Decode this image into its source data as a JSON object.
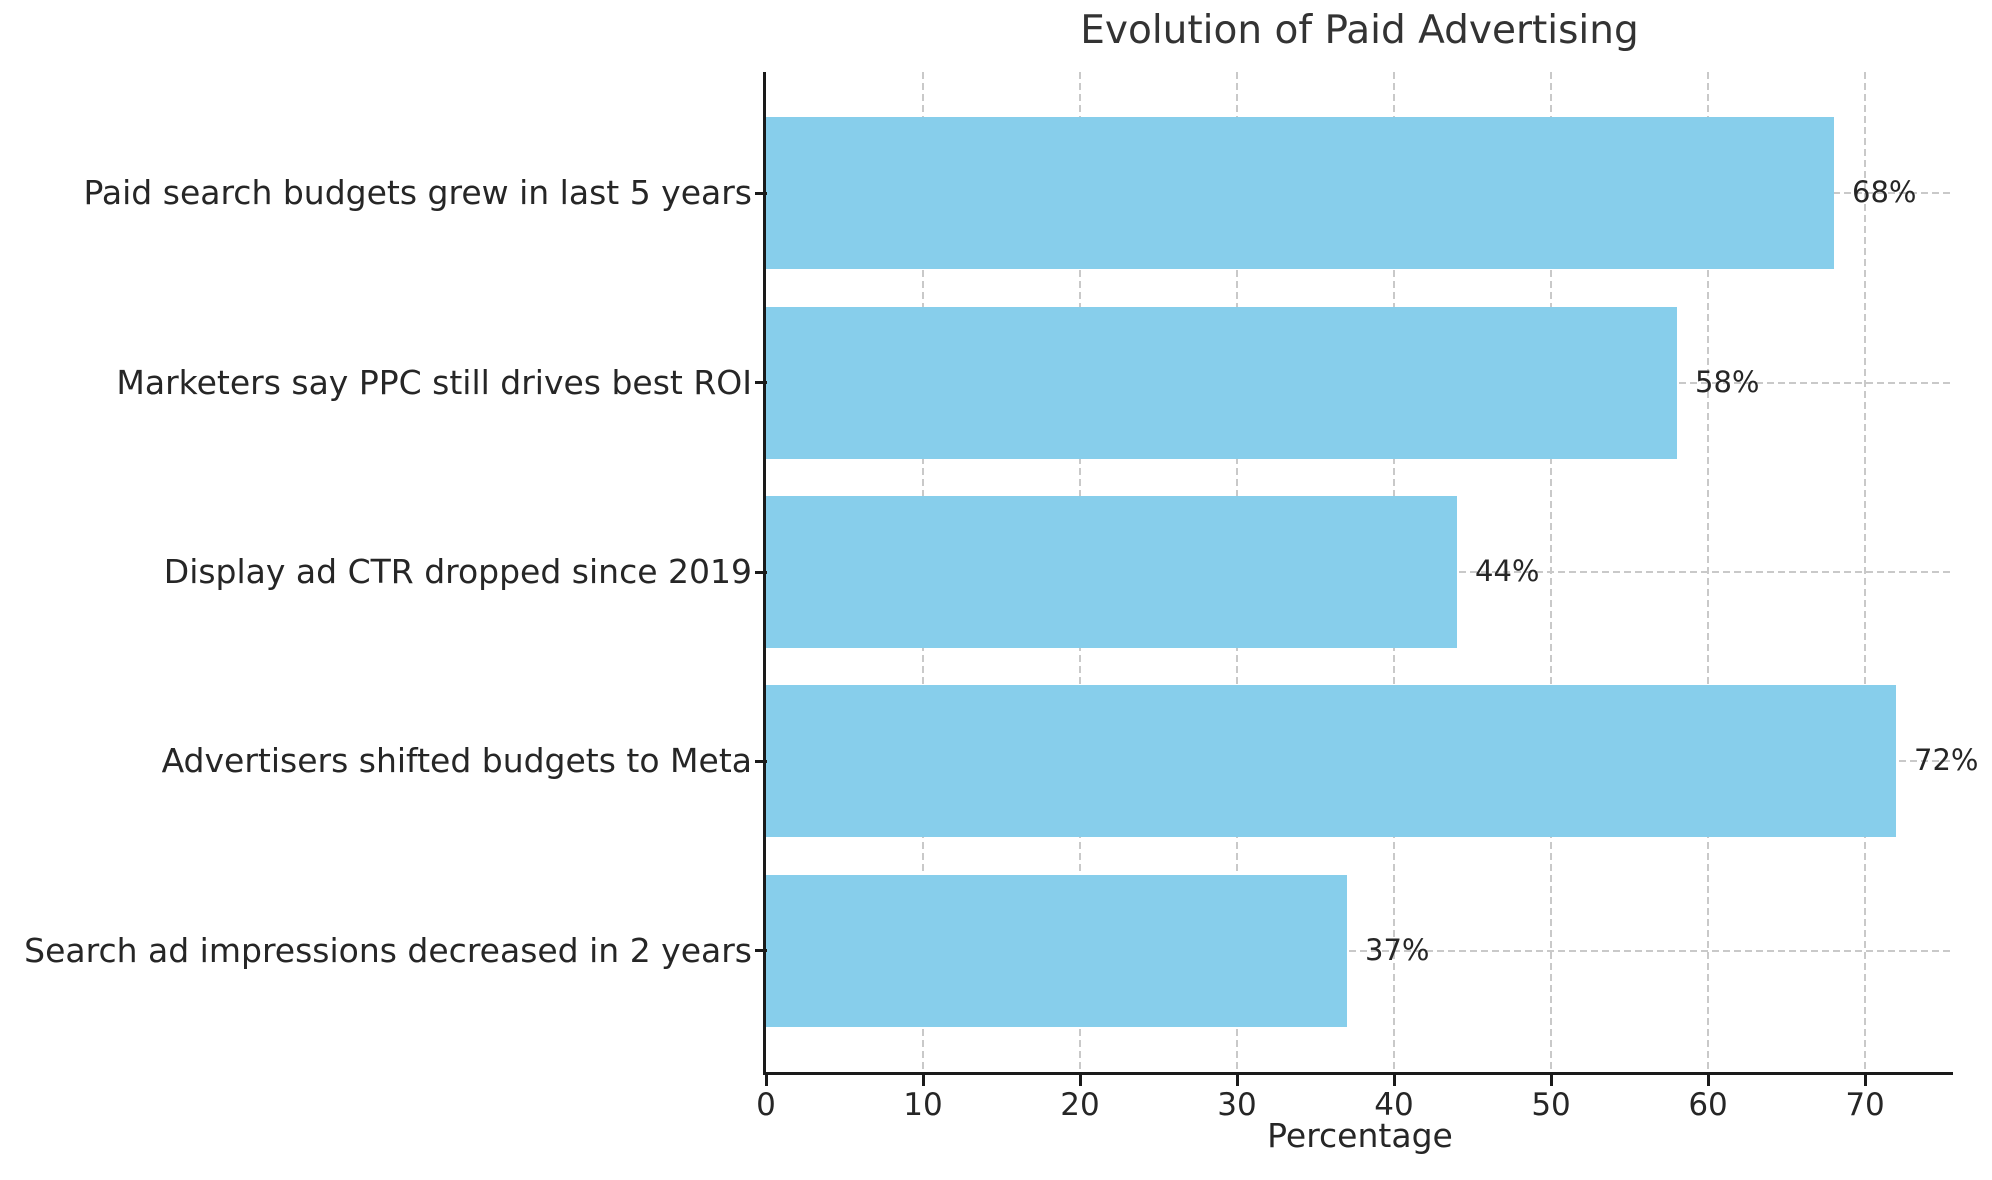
{
  "chart_data": {
    "type": "bar",
    "orientation": "horizontal",
    "title": "Evolution of Paid Advertising",
    "xlabel": "Percentage",
    "ylabel": "",
    "categories": [
      "Paid search budgets grew in last 5 years",
      "Marketers say PPC still drives best ROI",
      "Display ad CTR dropped since 2019",
      "Advertisers shifted budgets to Meta",
      "Search ad impressions decreased in 2 years"
    ],
    "values": [
      68,
      58,
      44,
      72,
      37
    ],
    "value_labels": [
      "68%",
      "58%",
      "44%",
      "72%",
      "37%"
    ],
    "x_ticks": [
      0,
      10,
      20,
      30,
      40,
      50,
      60,
      70
    ],
    "xlim": [
      0,
      75.6
    ],
    "grid": "dashed vertical lines at x ticks and dashed horizontal lines at category centers",
    "legend": "none",
    "colors": {
      "bar": "#87CEEB",
      "text": "#262626",
      "title": "#333333",
      "grid": "#c9c9c9",
      "spine": "#1a1a1a",
      "background": "#ffffff"
    }
  }
}
